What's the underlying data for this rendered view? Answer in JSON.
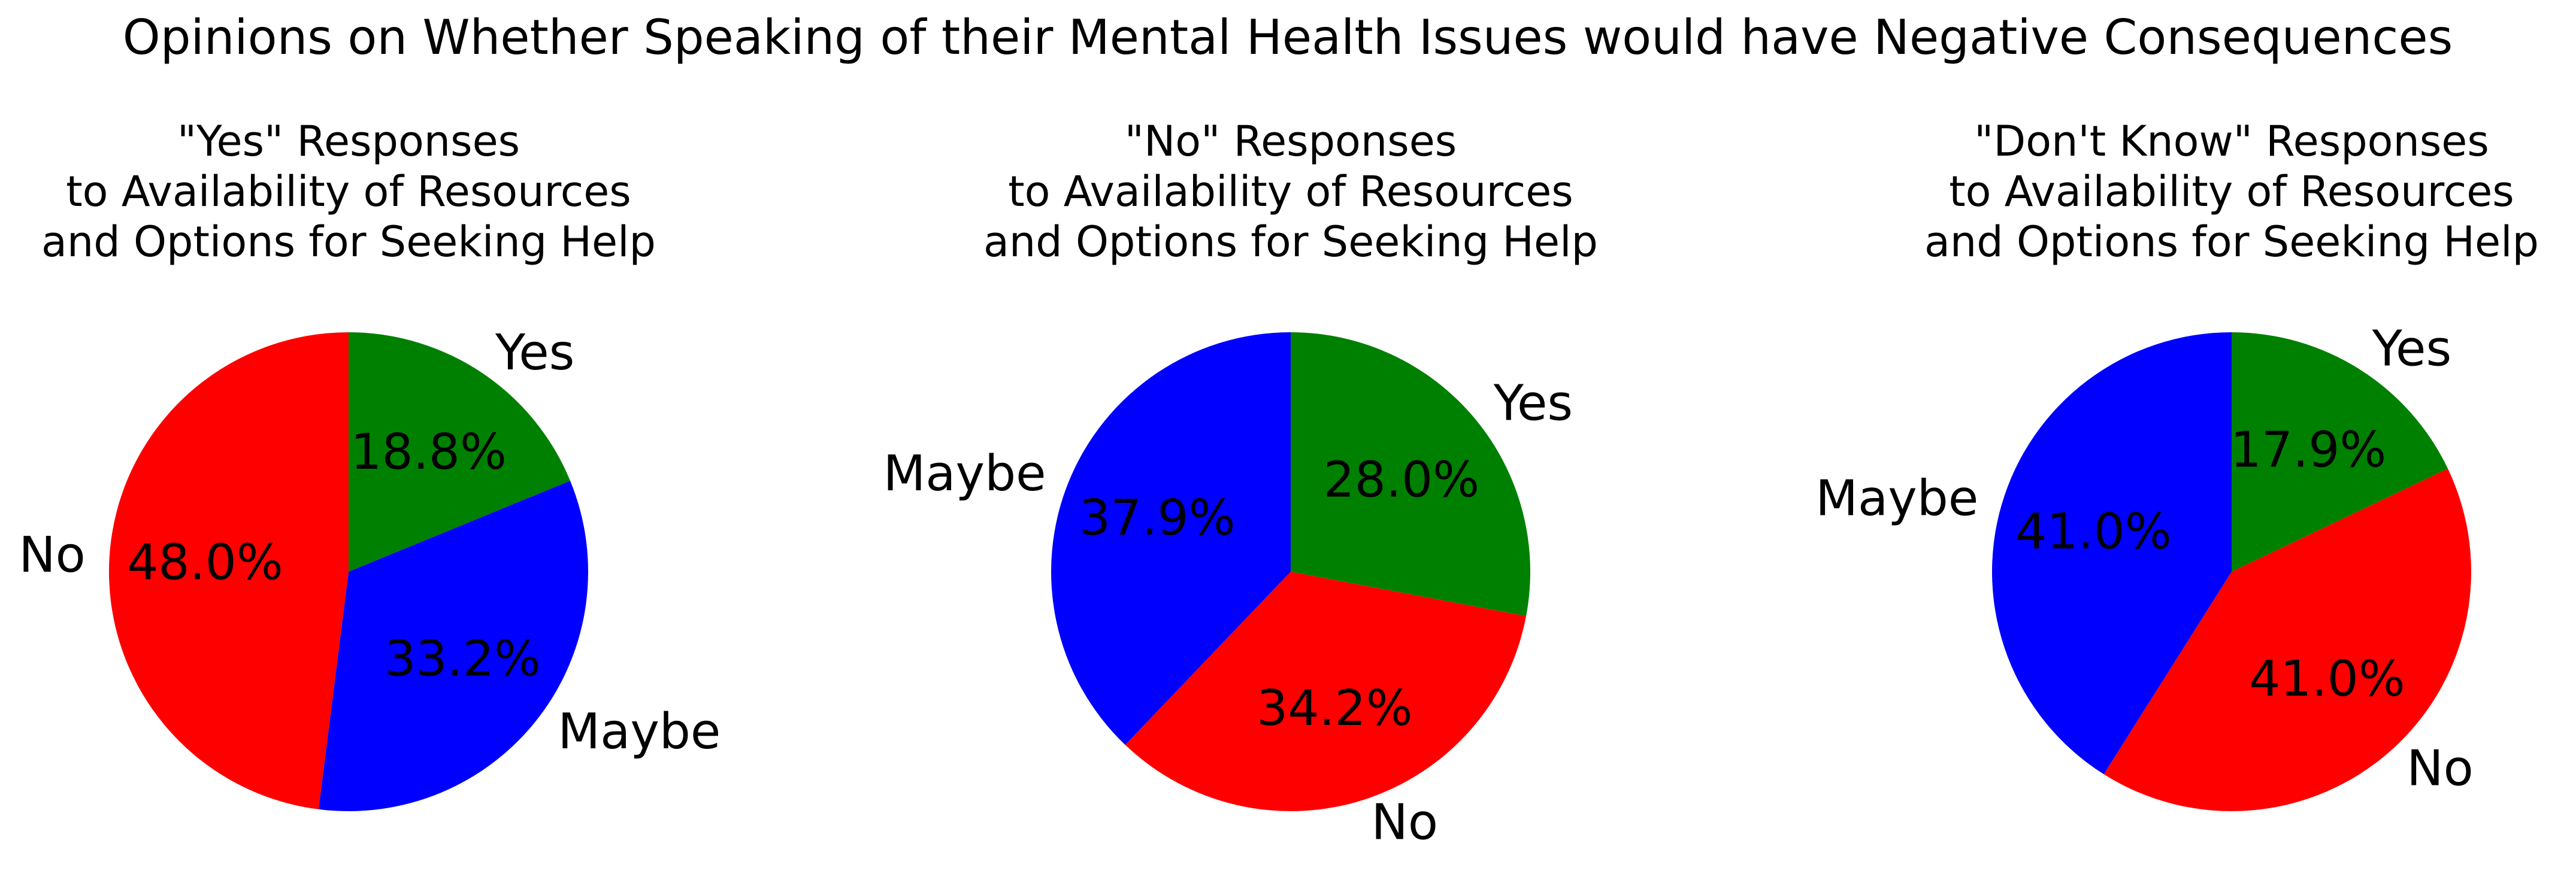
{
  "figure": {
    "suptitle": "Opinions on Whether Speaking of their Mental Health Issues would have Negative Consequences"
  },
  "chart_data": [
    {
      "type": "pie",
      "title": [
        "\"Yes\" Responses",
        "to Availability of Resources",
        "and Options for Seeking Help"
      ],
      "start_angle_deg": 90,
      "direction": "clockwise",
      "slices": [
        {
          "label": "Yes",
          "value": 18.8,
          "pct_label": "18.8%",
          "color": "#008000"
        },
        {
          "label": "Maybe",
          "value": 33.2,
          "pct_label": "33.2%",
          "color": "#0000ff"
        },
        {
          "label": "No",
          "value": 48.0,
          "pct_label": "48.0%",
          "color": "#ff0000"
        }
      ]
    },
    {
      "type": "pie",
      "title": [
        "\"No\" Responses",
        "to Availability of Resources",
        "and Options for Seeking Help"
      ],
      "start_angle_deg": 90,
      "direction": "clockwise",
      "slices": [
        {
          "label": "Yes",
          "value": 28.0,
          "pct_label": "28.0%",
          "color": "#008000"
        },
        {
          "label": "No",
          "value": 34.2,
          "pct_label": "34.2%",
          "color": "#ff0000"
        },
        {
          "label": "Maybe",
          "value": 37.9,
          "pct_label": "37.9%",
          "color": "#0000ff"
        }
      ]
    },
    {
      "type": "pie",
      "title": [
        "\"Don't Know\" Responses",
        "to Availability of Resources",
        "and Options for Seeking Help"
      ],
      "start_angle_deg": 90,
      "direction": "clockwise",
      "slices": [
        {
          "label": "Yes",
          "value": 17.9,
          "pct_label": "17.9%",
          "color": "#008000"
        },
        {
          "label": "No",
          "value": 41.0,
          "pct_label": "41.0%",
          "color": "#ff0000"
        },
        {
          "label": "Maybe",
          "value": 41.0,
          "pct_label": "41.0%",
          "color": "#0000ff"
        }
      ]
    }
  ]
}
